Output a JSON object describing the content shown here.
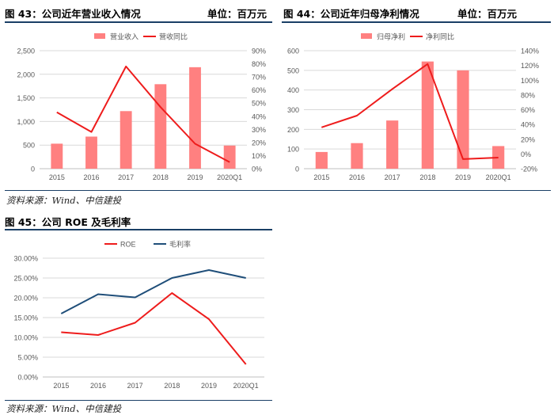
{
  "fig43": {
    "title": "图 43：公司近年营业收入情况",
    "unit": "单位：百万元"
  },
  "fig44": {
    "title": "图 44：公司近年归母净利情况",
    "unit": "单位：百万元"
  },
  "fig45": {
    "title": "图 45：公司 ROE 及毛利率"
  },
  "source_top": "资料来源：Wind、中信建投",
  "source_bottom": "资料来源：Wind、中信建投",
  "colors": {
    "bar": "#ff8080",
    "red_line": "#ee1c1c",
    "blue_line": "#1f4e79",
    "rule": "#1a3f66",
    "grid": "#d9d9d9",
    "axis_text": "#595959"
  },
  "chart_data": [
    {
      "id": "revenue",
      "type": "bar",
      "categories": [
        "2015",
        "2016",
        "2017",
        "2018",
        "2019",
        "2020Q1"
      ],
      "series": [
        {
          "name": "营业收入",
          "kind": "bar",
          "axis": "left",
          "values": [
            530,
            680,
            1220,
            1790,
            2150,
            490
          ]
        },
        {
          "name": "营收同比",
          "kind": "line",
          "axis": "right",
          "values": [
            0.43,
            0.28,
            0.78,
            0.47,
            0.19,
            0.05
          ]
        }
      ],
      "ylim_left": [
        0,
        2500
      ],
      "yticks_left": [
        "0",
        "500",
        "1,000",
        "1,500",
        "2,000",
        "2,500"
      ],
      "ylim_right": [
        0,
        0.9
      ],
      "yticks_right": [
        "0%",
        "10%",
        "20%",
        "30%",
        "40%",
        "50%",
        "60%",
        "70%",
        "80%",
        "90%"
      ],
      "legend": "top-center",
      "grid": true
    },
    {
      "id": "net_profit",
      "type": "bar",
      "categories": [
        "2015",
        "2016",
        "2017",
        "2018",
        "2019",
        "2020Q1"
      ],
      "series": [
        {
          "name": "归母净利",
          "kind": "bar",
          "axis": "left",
          "values": [
            85,
            130,
            245,
            545,
            500,
            115
          ]
        },
        {
          "name": "净利同比",
          "kind": "line",
          "axis": "right",
          "values": [
            0.36,
            0.52,
            0.88,
            1.22,
            -0.07,
            -0.05
          ]
        }
      ],
      "ylim_left": [
        0,
        600
      ],
      "yticks_left": [
        "0",
        "100",
        "200",
        "300",
        "400",
        "500",
        "600"
      ],
      "ylim_right": [
        -0.2,
        1.4
      ],
      "yticks_right": [
        "-20%",
        "0%",
        "20%",
        "40%",
        "60%",
        "80%",
        "100%",
        "120%",
        "140%"
      ],
      "legend": "top-center",
      "grid": true
    },
    {
      "id": "roe_margin",
      "type": "line",
      "categories": [
        "2015",
        "2016",
        "2017",
        "2018",
        "2019",
        "2020Q1"
      ],
      "series": [
        {
          "name": "ROE",
          "kind": "line",
          "axis": "left",
          "values": [
            0.113,
            0.106,
            0.137,
            0.212,
            0.146,
            0.032
          ]
        },
        {
          "name": "毛利率",
          "kind": "line",
          "axis": "left",
          "values": [
            0.16,
            0.209,
            0.201,
            0.25,
            0.27,
            0.25
          ]
        }
      ],
      "ylim_left": [
        0,
        0.3
      ],
      "yticks_left": [
        "0.00%",
        "5.00%",
        "10.00%",
        "15.00%",
        "20.00%",
        "25.00%",
        "30.00%"
      ],
      "legend": "top-center",
      "grid": true
    }
  ]
}
